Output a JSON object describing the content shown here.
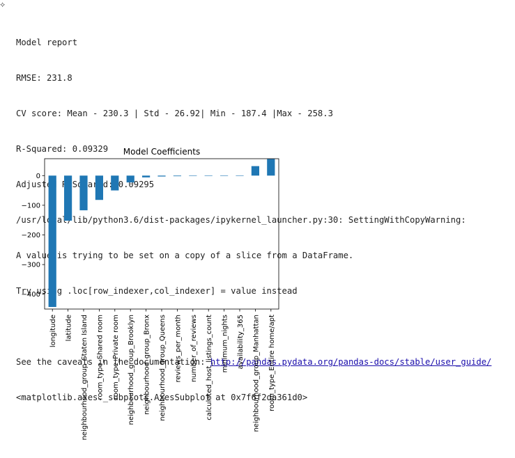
{
  "output": {
    "report_title": "Model report",
    "rmse": "RMSE: 231.8",
    "cv_score": "CV score: Mean - 230.3 | Std - 26.92| Min - 187.4 |Max - 258.3",
    "r_squared": "R-Squared: 0.09329",
    "adj_r_squared": "Adjusted R-Squared: 0.09295",
    "warning_path": "/usr/local/lib/python3.6/dist-packages/ipykernel_launcher.py:30: SettingWithCopyWarning:",
    "warning_msg": "A value is trying to be set on a copy of a slice from a DataFrame.",
    "warning_hint": "Try using .loc[row_indexer,col_indexer] = value instead",
    "caveats_prefix": "See the caveats in the documentation: ",
    "caveats_link": "http://pandas.pydata.org/pandas-docs/stable/user_guide/",
    "axes_repr": "<matplotlib.axes._subplots.AxesSubplot at 0x7f6f2da361d0>"
  },
  "chart_data": {
    "type": "bar",
    "title": "Model Coefficients",
    "xlabel": "",
    "ylabel": "",
    "categories": [
      "longitude",
      "latitude",
      "neighbourhood_group_Staten Island",
      "room_type_Shared room",
      "room_type_Private room",
      "neighbourhood_group_Brooklyn",
      "neighbourhood_group_Bronx",
      "neighbourhood_group_Queens",
      "reviews_per_month",
      "number_of_reviews",
      "calculated_host_listings_count",
      "minimum_nights",
      "availability_365",
      "neighbourhood_group_Manhattan",
      "room_type_Entire home/apt"
    ],
    "values": [
      -443,
      -152,
      -117,
      -82,
      -50,
      -23,
      -6,
      -3,
      -2,
      -0.4,
      -0.2,
      0,
      0.2,
      32,
      56
    ],
    "yticks": [
      0,
      -100,
      -200,
      -300,
      -400
    ],
    "ytick_labels": [
      "0",
      "−100",
      "−200",
      "−300",
      "−400"
    ],
    "ylim": [
      -450,
      57
    ],
    "bar_color": "#1f77b4",
    "grid": false,
    "legend": "none"
  }
}
